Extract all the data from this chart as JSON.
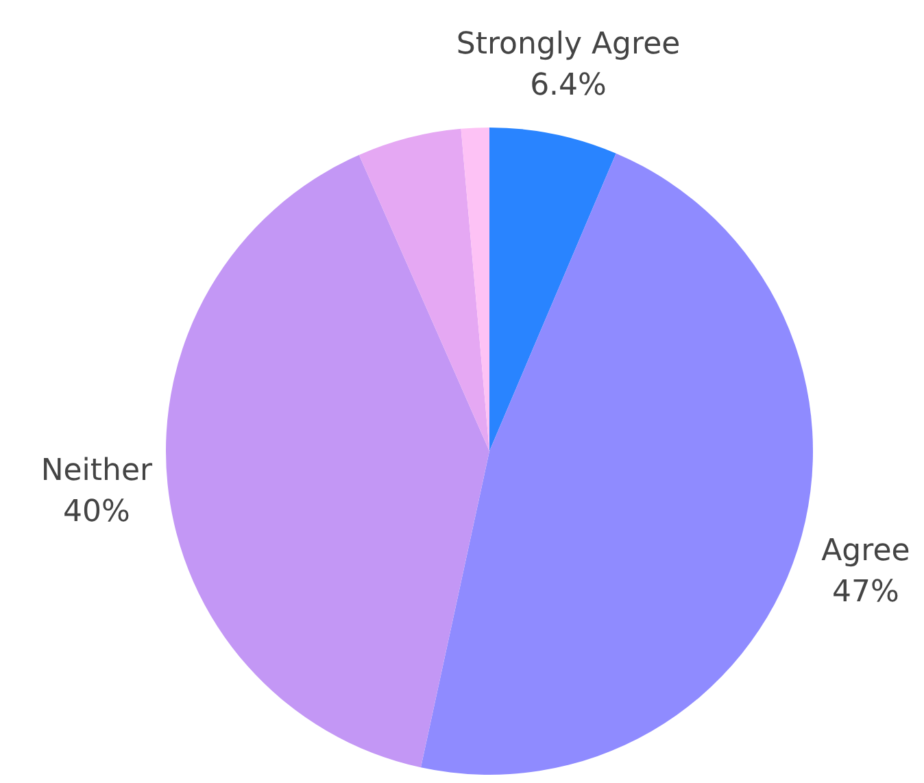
{
  "chart_data": {
    "type": "pie",
    "categories": [
      "Strongly Agree",
      "Agree",
      "Neither",
      null,
      null
    ],
    "values": [
      6.4,
      47,
      40,
      5.2,
      1.4
    ],
    "colors": [
      "#2984ff",
      "#8f8bff",
      "#c397f5",
      "#e5a8f3",
      "#fdc2f5"
    ],
    "value_labels": [
      "6.4%",
      "47%",
      "40%",
      null,
      null
    ]
  }
}
